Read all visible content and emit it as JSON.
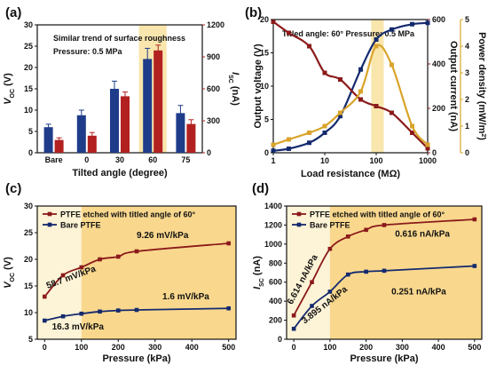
{
  "colors": {
    "blue": "#1f3c8a",
    "red": "#b22020",
    "darkred": "#8b1a1a",
    "orange": "#d9a42a",
    "highlight": "#f7dc8a",
    "light_orange": "#fdf3d6",
    "mid_orange": "#f9d88e",
    "navy": "#142a6e"
  },
  "chart_data": [
    {
      "id": "a",
      "type": "bar",
      "panel_label": "(a)",
      "note_lines": [
        "Similar trend of surface roughness",
        "Pressure: 0.5 MPa"
      ],
      "categories": [
        "Bare",
        "0",
        "30",
        "60",
        "75"
      ],
      "highlight_category": "60",
      "xlabel": "Tilted angle (degree)",
      "ylabel_left": {
        "main": "V",
        "sub": "OC",
        "unit": " (V)"
      },
      "ylabel_right": {
        "main": "I",
        "sub": "SC",
        "unit": " (nA)"
      },
      "ylim_left": [
        0,
        30
      ],
      "ylim_right": [
        0,
        1200
      ],
      "yticks_left": [
        0,
        5,
        10,
        15,
        20,
        25,
        30
      ],
      "yticks_right": [
        0,
        300,
        600,
        900,
        1200
      ],
      "series": [
        {
          "axis": "left",
          "values": [
            6.0,
            8.8,
            15.0,
            22.0,
            9.3
          ],
          "errors": [
            0.7,
            1.2,
            1.8,
            2.5,
            1.8
          ]
        },
        {
          "axis": "right",
          "values": [
            120,
            160,
            530,
            960,
            270
          ],
          "errors": [
            20,
            30,
            40,
            50,
            40
          ]
        }
      ]
    },
    {
      "id": "b",
      "type": "line",
      "panel_label": "(b)",
      "note": "Titled angle: 60° Pressure: 0.5 MPa",
      "xlabel": "Load resistance (MΩ)",
      "ylabel_left": "Output voltage (V)",
      "ylabel_right1": "Output current (nA)",
      "ylabel_right2": {
        "main": "Power density (mW/m",
        "sup": "2",
        "end": ")"
      },
      "xscale": "log",
      "xlim": [
        1,
        1000
      ],
      "xticks": [
        1,
        10,
        100,
        1000
      ],
      "xtick_labels": [
        "1",
        "10",
        "100",
        "1000"
      ],
      "highlight_x": [
        80,
        140
      ],
      "ylim_left": [
        0,
        20
      ],
      "yticks_left": [
        0,
        5,
        10,
        15,
        20
      ],
      "ylim_right1": [
        0,
        600
      ],
      "yticks_right1": [
        0,
        200,
        400,
        600
      ],
      "ylim_right2": [
        0,
        5
      ],
      "yticks_right2": [
        0,
        1,
        2,
        3,
        4,
        5
      ],
      "series": [
        {
          "axis": "left",
          "x": [
            1,
            2,
            5,
            10,
            20,
            50,
            100,
            200,
            500,
            1000
          ],
          "y": [
            0.3,
            0.6,
            1.5,
            3.0,
            5.5,
            12.5,
            17.0,
            18.5,
            19.3,
            19.5
          ]
        },
        {
          "axis": "right1",
          "x": [
            1,
            2,
            5,
            10,
            20,
            50,
            100,
            200,
            500,
            1000
          ],
          "y": [
            590,
            540,
            480,
            360,
            330,
            240,
            210,
            180,
            90,
            20
          ]
        },
        {
          "axis": "right2",
          "x": [
            1,
            2,
            5,
            10,
            20,
            50,
            100,
            200,
            500,
            1000
          ],
          "y": [
            0.3,
            0.5,
            0.75,
            1.0,
            1.5,
            2.3,
            4.0,
            3.3,
            1.0,
            0.3
          ]
        }
      ]
    },
    {
      "id": "c",
      "type": "line",
      "panel_label": "(c)",
      "xlabel": "Pressure (kPa)",
      "ylabel": {
        "main": "V",
        "sub": "OC",
        "unit": " (V)"
      },
      "xlim": [
        -20,
        520
      ],
      "xticks": [
        0,
        100,
        200,
        300,
        400,
        500
      ],
      "ylim": [
        5,
        30
      ],
      "yticks": [
        5,
        10,
        15,
        20,
        25,
        30
      ],
      "region_split": 100,
      "legend": [
        {
          "name": "PTFE etched with titled angle of 60°"
        },
        {
          "name": "Bare PTFE"
        }
      ],
      "series": [
        {
          "x": [
            0,
            50,
            100,
            150,
            200,
            250,
            500
          ],
          "y": [
            13.0,
            17.0,
            18.5,
            20.0,
            20.5,
            21.5,
            23.0
          ]
        },
        {
          "x": [
            0,
            50,
            100,
            150,
            200,
            250,
            500
          ],
          "y": [
            8.5,
            9.3,
            9.8,
            10.2,
            10.4,
            10.5,
            10.8
          ]
        }
      ],
      "annotations": [
        {
          "text": "9.26 mV/kPa",
          "series": 0,
          "x": 250,
          "y": 24.0
        },
        {
          "text": "58.7 mV/kPa",
          "series": 0,
          "x": 8,
          "y": 14.5,
          "rotate": -20
        },
        {
          "text": "1.6 mV/kPa",
          "series": 1,
          "x": 320,
          "y": 12.5
        },
        {
          "text": "16.3 mV/kPa",
          "series": 1,
          "x": 20,
          "y": 6.8
        }
      ]
    },
    {
      "id": "d",
      "type": "line",
      "panel_label": "(d)",
      "xlabel": "Pressure (kPa)",
      "ylabel": {
        "main": "I",
        "sub": "SC",
        "unit": " (nA)"
      },
      "xlim": [
        -20,
        520
      ],
      "xticks": [
        0,
        100,
        200,
        300,
        400,
        500
      ],
      "ylim": [
        0,
        1400
      ],
      "yticks": [
        0,
        200,
        400,
        600,
        800,
        1000,
        1200,
        1400
      ],
      "region_split": 100,
      "legend": [
        {
          "name": "PTFE etched with titled angle of 60°"
        },
        {
          "name": "Bare PTFE"
        }
      ],
      "series": [
        {
          "x": [
            0,
            50,
            100,
            150,
            200,
            250,
            500
          ],
          "y": [
            250,
            600,
            950,
            1080,
            1150,
            1200,
            1260
          ]
        },
        {
          "x": [
            0,
            50,
            100,
            150,
            200,
            250,
            500
          ],
          "y": [
            110,
            350,
            500,
            680,
            710,
            720,
            770
          ]
        }
      ],
      "annotations": [
        {
          "text": "0.616 nA/kPa",
          "series": 0,
          "x": 280,
          "y": 1080
        },
        {
          "text": "6.614 nA/kPa",
          "series": 0,
          "x": -5,
          "y": 360,
          "rotate": -62
        },
        {
          "text": "0.251 nA/kPa",
          "series": 1,
          "x": 270,
          "y": 470
        },
        {
          "text": "3.895 nA/kPa",
          "series": 1,
          "x": 30,
          "y": 160,
          "rotate": -38
        }
      ]
    }
  ]
}
